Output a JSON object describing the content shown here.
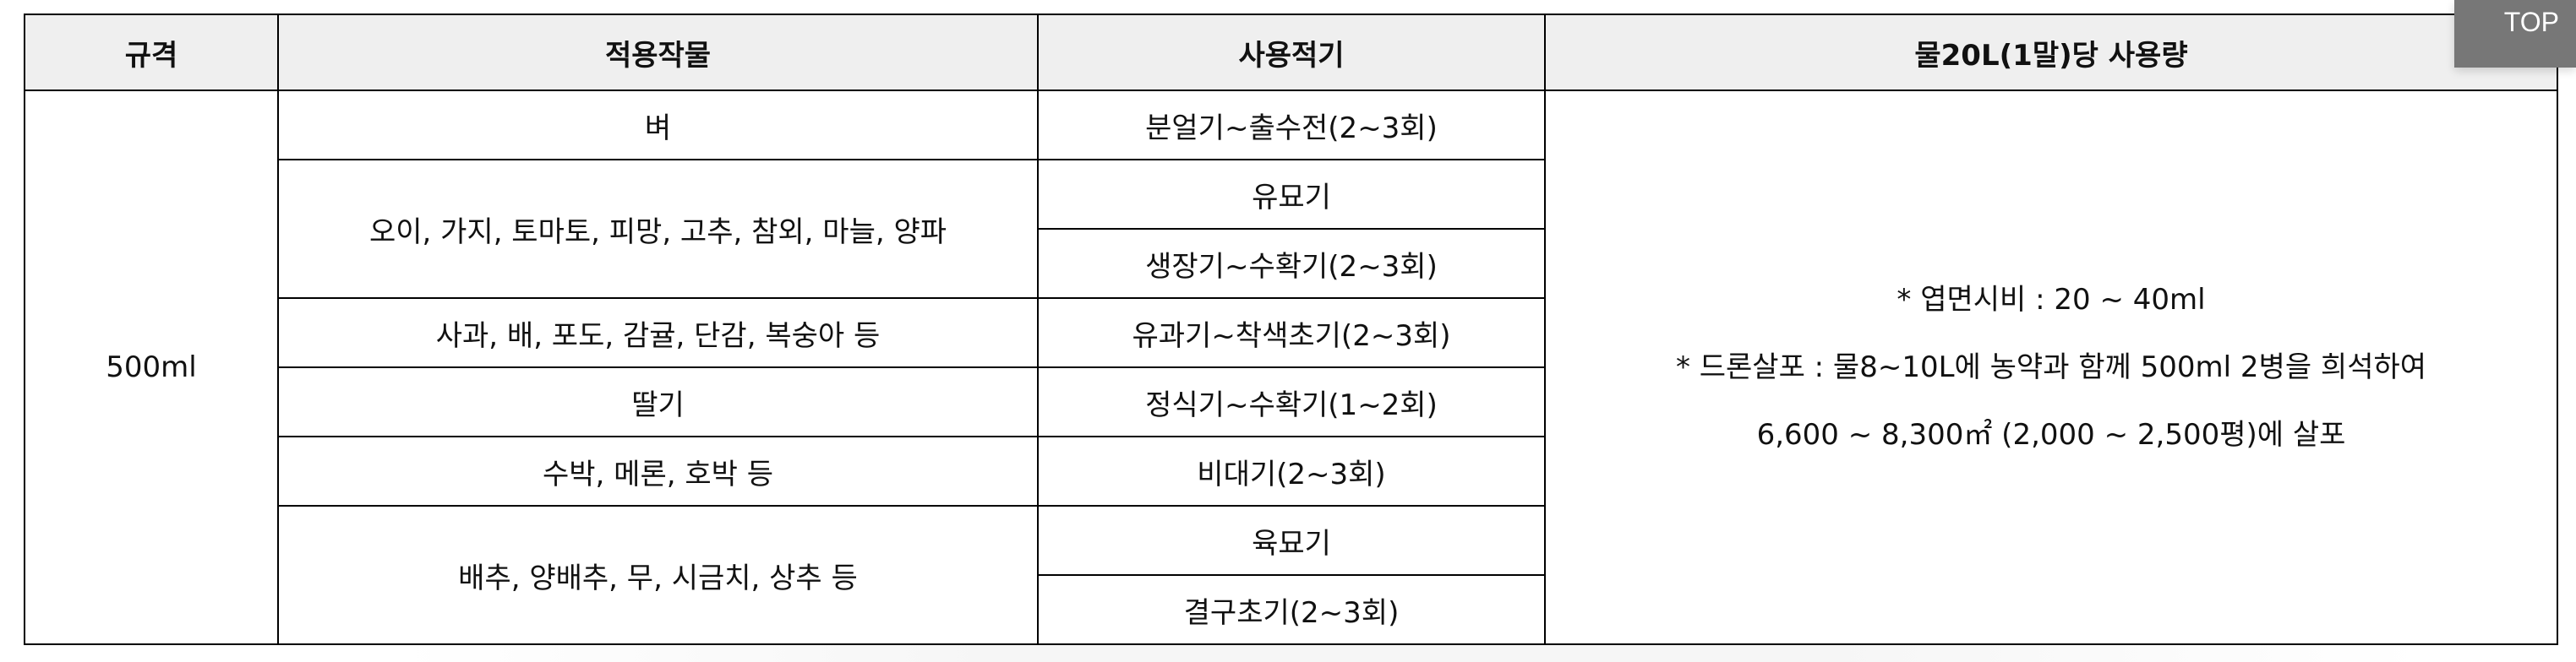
{
  "table": {
    "headers": [
      "규격",
      "적용작물",
      "사용적기",
      "물20L(1말)당 사용량"
    ],
    "spec": "500ml",
    "crops": [
      "벼",
      "오이, 가지, 토마토, 피망, 고추, 참외, 마늘, 양파",
      "사과, 배, 포도, 감귤, 단감, 복숭아 등",
      "딸기",
      "수박, 메론, 호박 등",
      "배추, 양배추, 무, 시금치, 상추 등"
    ],
    "timings": [
      "분얼기~출수전(2~3회)",
      "유묘기",
      "생장기~수확기(2~3회)",
      "유과기~착색초기(2~3회)",
      "정식기~수확기(1~2회)",
      "비대기(2~3회)",
      "육묘기",
      "결구초기(2~3회)"
    ],
    "usage": [
      "* 엽면시비 : 20 ~ 40ml",
      "* 드론살포 : 물8~10L에 농약과 함께 500ml 2병을 희석하여",
      "6,600 ~ 8,300㎡ (2,000 ~ 2,500평)에 살포"
    ]
  },
  "top_button": "TOP",
  "colors": {
    "header_bg": "#efefef",
    "top_button_bg": "#777777"
  }
}
